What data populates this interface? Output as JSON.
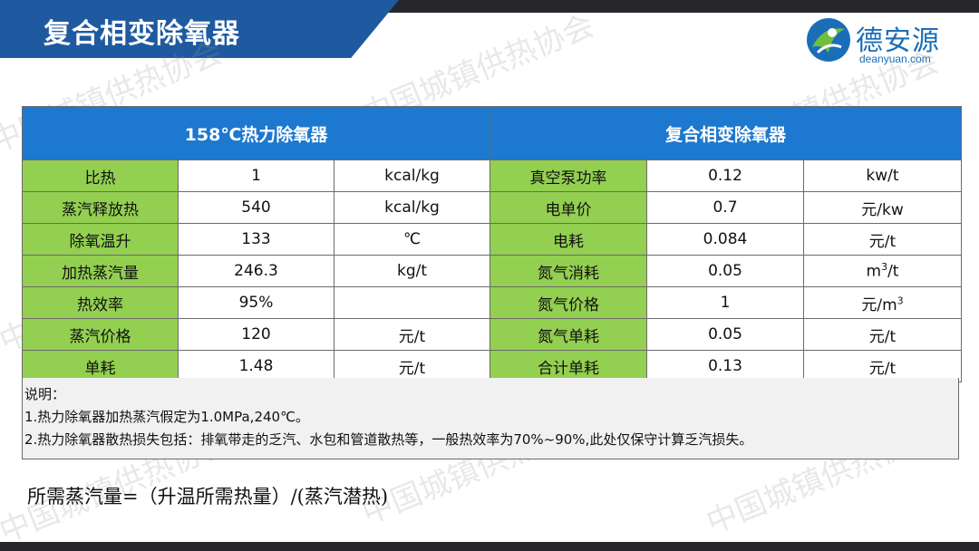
{
  "title": "复合相变除氧器",
  "logo": {
    "cn": "德安源",
    "en": "deanyuan.com"
  },
  "watermark": "中国城镇供热协会",
  "table": {
    "left_header": "158℃热力除氧器",
    "right_header": "复合相变除氧器",
    "rows": [
      {
        "l_label": "比热",
        "l_value": "1",
        "l_unit": "kcal/kg",
        "r_label": "真空泵功率",
        "r_value": "0.12",
        "r_unit": "kw/t"
      },
      {
        "l_label": "蒸汽释放热",
        "l_value": "540",
        "l_unit": "kcal/kg",
        "r_label": "电单价",
        "r_value": "0.7",
        "r_unit": "元/kw"
      },
      {
        "l_label": "除氧温升",
        "l_value": "133",
        "l_unit": "℃",
        "r_label": "电耗",
        "r_value": "0.084",
        "r_unit": "元/t"
      },
      {
        "l_label": "加热蒸汽量",
        "l_value": "246.3",
        "l_unit": "kg/t",
        "r_label": "氮气消耗",
        "r_value": "0.05",
        "r_unit_main": "m",
        "r_unit_sup": "3",
        "r_unit_tail": "/t"
      },
      {
        "l_label": "热效率",
        "l_value": "95%",
        "l_unit": "",
        "r_label": "氮气价格",
        "r_value": "1",
        "r_unit_main": "元/m",
        "r_unit_sup": "3",
        "r_unit_tail": ""
      },
      {
        "l_label": "蒸汽价格",
        "l_value": "120",
        "l_unit": "元/t",
        "r_label": "氮气单耗",
        "r_value": "0.05",
        "r_unit": "元/t"
      },
      {
        "l_label": "单耗",
        "l_value": "1.48",
        "l_unit": "元/t",
        "r_label": "合计单耗",
        "r_value": "0.13",
        "r_unit": "元/t"
      }
    ]
  },
  "notes": {
    "heading": "说明：",
    "line1": "1.热力除氧器加热蒸汽假定为1.0MPa,240℃。",
    "line2": "2.热力除氧器散热损失包括：排氧带走的乏汽、水包和管道散热等，一般热效率为70%~90%,此处仅保守计算乏汽损失。"
  },
  "formula": "所需蒸汽量=（升温所需热量）/(蒸汽潜热)",
  "colors": {
    "title_band": "#1f5aa0",
    "header_blue": "#1d78cf",
    "label_green": "#93cf50",
    "logo_blue": "#1a6eb8"
  }
}
